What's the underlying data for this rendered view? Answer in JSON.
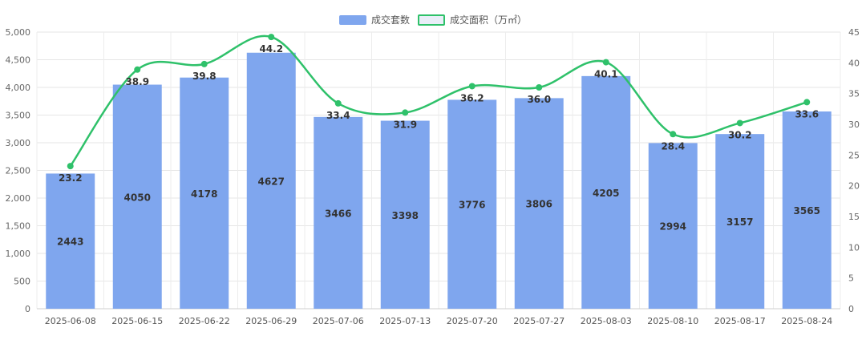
{
  "chart_data": {
    "type": "bar",
    "categories": [
      "2025-06-08",
      "2025-06-15",
      "2025-06-22",
      "2025-06-29",
      "2025-07-06",
      "2025-07-13",
      "2025-07-20",
      "2025-07-27",
      "2025-08-03",
      "2025-08-10",
      "2025-08-17",
      "2025-08-24"
    ],
    "series": [
      {
        "name": "成交套数",
        "type": "bar",
        "axis": "left",
        "color": "#7fa6ee",
        "values": [
          2443,
          4050,
          4178,
          4627,
          3466,
          3398,
          3776,
          3806,
          4205,
          2994,
          3157,
          3565
        ]
      },
      {
        "name": "成交面积（万㎡）",
        "type": "line",
        "axis": "right",
        "color": "#2fc16a",
        "values": [
          23.2,
          38.9,
          39.8,
          44.2,
          33.4,
          31.9,
          36.2,
          36.0,
          40.1,
          28.4,
          30.2,
          33.6
        ]
      }
    ],
    "y_left": {
      "min": 0,
      "max": 5000,
      "ticks": [
        "0",
        "500",
        "1,000",
        "1,500",
        "2,000",
        "2,500",
        "3,000",
        "3,500",
        "4,000",
        "4,500",
        "5,000"
      ]
    },
    "y_right": {
      "min": 0,
      "max": 45,
      "ticks": [
        "0",
        "5",
        "10",
        "15",
        "20",
        "25",
        "30",
        "35",
        "40",
        "45"
      ]
    },
    "legend_position": "top-center",
    "grid": true
  }
}
